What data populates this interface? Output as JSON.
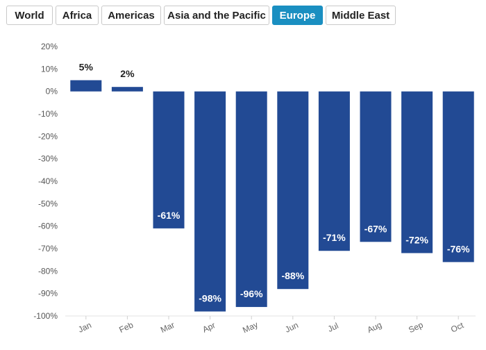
{
  "tabs": [
    {
      "label": "World",
      "active": false
    },
    {
      "label": "Africa",
      "active": false
    },
    {
      "label": "Americas",
      "active": false
    },
    {
      "label": "Asia and the Pacific",
      "active": false
    },
    {
      "label": "Europe",
      "active": true
    },
    {
      "label": "Middle East",
      "active": false
    }
  ],
  "colors": {
    "bar": "#224a94",
    "accent": "#1a8fc1"
  },
  "chart_data": {
    "type": "bar",
    "categories": [
      "Jan",
      "Feb",
      "Mar",
      "Apr",
      "May",
      "Jun",
      "Jul",
      "Aug",
      "Sep",
      "Oct"
    ],
    "values": [
      5,
      2,
      -61,
      -98,
      -96,
      -88,
      -71,
      -67,
      -72,
      -76
    ],
    "data_labels": [
      "5%",
      "2%",
      "-61%",
      "-98%",
      "-96%",
      "-88%",
      "-71%",
      "-67%",
      "-72%",
      "-76%"
    ],
    "ylim": [
      -100,
      20
    ],
    "yticks": [
      20,
      10,
      0,
      -10,
      -20,
      -30,
      -40,
      -50,
      -60,
      -70,
      -80,
      -90,
      -100
    ],
    "ytick_labels": [
      "20%",
      "10%",
      "0%",
      "-10%",
      "-20%",
      "-30%",
      "-40%",
      "-50%",
      "-60%",
      "-70%",
      "-80%",
      "-90%",
      "-100%"
    ],
    "grid": false,
    "xlabel": "",
    "ylabel": ""
  }
}
